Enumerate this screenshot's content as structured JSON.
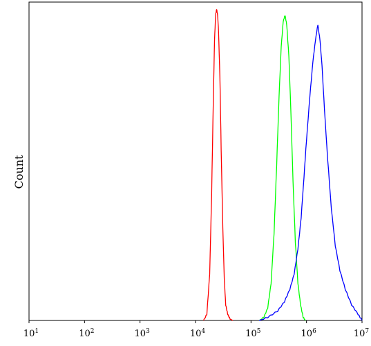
{
  "chart_data": {
    "type": "line",
    "title": "",
    "xlabel": "",
    "ylabel": "Count",
    "x_scale": "log",
    "xlim": [
      10,
      10000000
    ],
    "ylim": [
      0,
      1
    ],
    "grid": false,
    "legend": "none",
    "x_ticks": [
      {
        "base": "10",
        "exp": "1",
        "value": 10
      },
      {
        "base": "10",
        "exp": "2",
        "value": 100
      },
      {
        "base": "10",
        "exp": "3",
        "value": 1000
      },
      {
        "base": "10",
        "exp": "4",
        "value": 10000
      },
      {
        "base": "10",
        "exp": "5",
        "value": 100000
      },
      {
        "base": "10",
        "exp": "6",
        "value": 1000000
      },
      {
        "base": "10",
        "exp": "7",
        "value": 10000000
      }
    ],
    "series": [
      {
        "color": "#ff0000",
        "x": [
          14000,
          16000,
          18000,
          19500,
          21000,
          22000,
          23000,
          24000,
          25000,
          26000,
          27500,
          29000,
          31000,
          33000,
          35000,
          38000,
          42000,
          47000
        ],
        "values": [
          0,
          0.02,
          0.15,
          0.4,
          0.72,
          0.9,
          0.98,
          1.0,
          0.98,
          0.93,
          0.78,
          0.55,
          0.3,
          0.13,
          0.05,
          0.02,
          0.005,
          0
        ]
      },
      {
        "color": "#00ff00",
        "x": [
          140000,
          170000,
          200000,
          230000,
          260000,
          290000,
          320000,
          350000,
          380000,
          410000,
          440000,
          480000,
          520000,
          570000,
          630000,
          700000,
          780000,
          870000,
          960000
        ],
        "values": [
          0,
          0.01,
          0.04,
          0.12,
          0.28,
          0.5,
          0.72,
          0.88,
          0.96,
          0.98,
          0.95,
          0.85,
          0.68,
          0.45,
          0.25,
          0.12,
          0.05,
          0.01,
          0
        ]
      },
      {
        "color": "#0000ff",
        "x": [
          140000,
          200000,
          300000,
          400000,
          500000,
          600000,
          700000,
          800000,
          900000,
          1000000,
          1150000,
          1300000,
          1450000,
          1600000,
          1750000,
          1900000,
          2100000,
          2400000,
          2800000,
          3300000,
          4000000,
          5000000,
          6500000,
          8500000,
          10000000
        ],
        "values": [
          0,
          0.01,
          0.03,
          0.06,
          0.1,
          0.15,
          0.23,
          0.33,
          0.46,
          0.58,
          0.72,
          0.83,
          0.9,
          0.95,
          0.9,
          0.82,
          0.68,
          0.52,
          0.36,
          0.24,
          0.16,
          0.1,
          0.05,
          0.02,
          0
        ]
      }
    ]
  }
}
